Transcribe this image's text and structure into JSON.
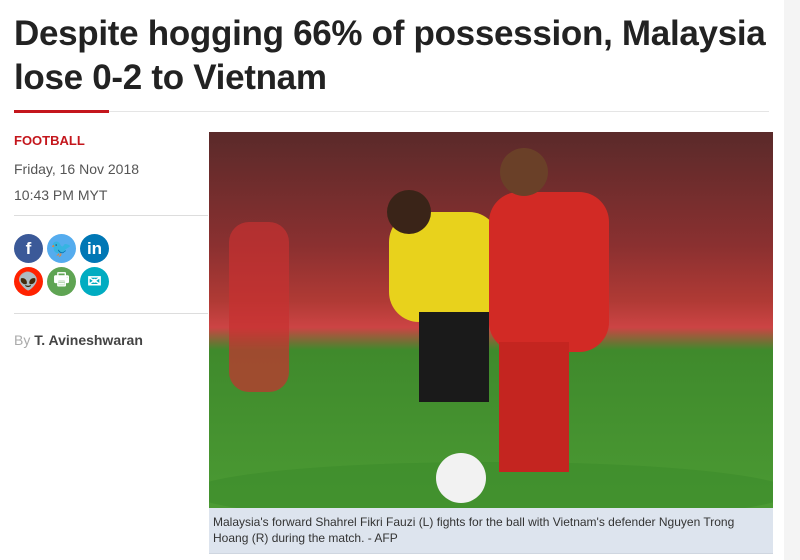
{
  "article": {
    "title": "Despite hogging 66% of possession, Malaysia lose 0-2 to Vietnam",
    "category": "FOOTBALL",
    "date": "Friday, 16 Nov 2018",
    "time": "10:43 PM MYT",
    "byline_prefix": "By",
    "author": "T. Avineshwaran",
    "caption": "Malaysia's forward Shahrel Fikri Fauzi (L) fights for the ball with Vietnam's defender Nguyen Trong Hoang (R) during the match. - AFP"
  },
  "share": [
    {
      "icon": "facebook-icon",
      "glyph": "f",
      "color": "#3b5998"
    },
    {
      "icon": "twitter-icon",
      "glyph": "🐦",
      "color": "#55acee"
    },
    {
      "icon": "linkedin-icon",
      "glyph": "in",
      "color": "#0077b5"
    },
    {
      "icon": "reddit-icon",
      "glyph": "👽",
      "color": "#ff2200"
    },
    {
      "icon": "print-icon",
      "glyph": "🖶",
      "color": "#5fa453"
    },
    {
      "icon": "email-icon",
      "glyph": "✉",
      "color": "#00acc1"
    }
  ]
}
